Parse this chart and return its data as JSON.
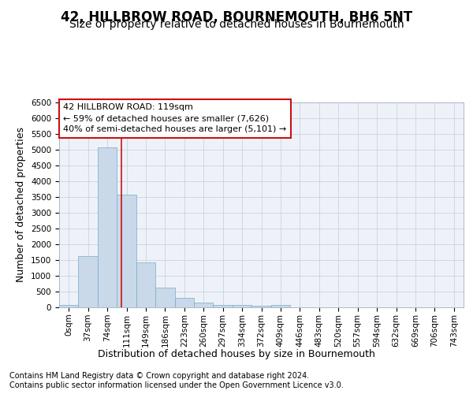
{
  "title": "42, HILLBROW ROAD, BOURNEMOUTH, BH6 5NT",
  "subtitle": "Size of property relative to detached houses in Bournemouth",
  "xlabel": "Distribution of detached houses by size in Bournemouth",
  "ylabel": "Number of detached properties",
  "footer1": "Contains HM Land Registry data © Crown copyright and database right 2024.",
  "footer2": "Contains public sector information licensed under the Open Government Licence v3.0.",
  "bin_labels": [
    "0sqm",
    "37sqm",
    "74sqm",
    "111sqm",
    "149sqm",
    "186sqm",
    "223sqm",
    "260sqm",
    "297sqm",
    "334sqm",
    "372sqm",
    "409sqm",
    "446sqm",
    "483sqm",
    "520sqm",
    "557sqm",
    "594sqm",
    "632sqm",
    "669sqm",
    "706sqm",
    "743sqm"
  ],
  "bar_values": [
    75,
    1625,
    5075,
    3575,
    1425,
    625,
    300,
    150,
    75,
    75,
    50,
    75,
    0,
    0,
    0,
    0,
    0,
    0,
    0,
    0,
    0
  ],
  "bar_color": "#c9d9ea",
  "bar_edge_color": "#7aaac8",
  "grid_color": "#c8d4e0",
  "vline_color": "#cc1111",
  "annotation_text": "42 HILLBROW ROAD: 119sqm\n← 59% of detached houses are smaller (7,626)\n40% of semi-detached houses are larger (5,101) →",
  "annotation_box_color": "#ffffff",
  "annotation_border_color": "#cc1111",
  "plot_bg_color": "#eef2f8",
  "ylim_max": 6500,
  "ytick_step": 500,
  "title_fontsize": 12,
  "subtitle_fontsize": 10,
  "axis_label_fontsize": 9,
  "tick_fontsize": 7.5,
  "annotation_fontsize": 8,
  "footer_fontsize": 7
}
